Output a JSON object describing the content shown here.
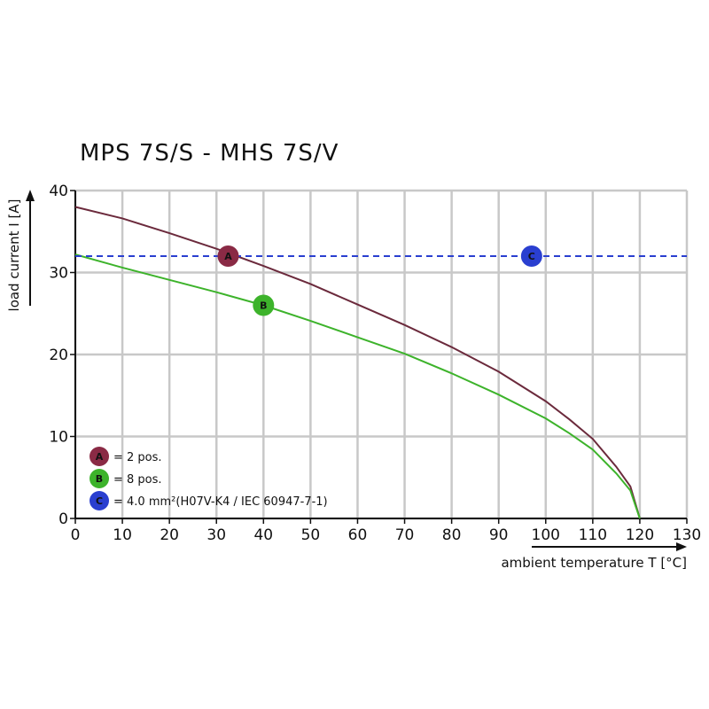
{
  "chart_data": {
    "type": "line",
    "title": "MPS 7S/S - MHS 7S/V",
    "xlabel": "ambient temperature T [°C]",
    "ylabel": "load current I [A]",
    "xlim": [
      0,
      130
    ],
    "ylim": [
      0,
      40
    ],
    "x_ticks": [
      "0",
      "10",
      "20",
      "30",
      "40",
      "50",
      "60",
      "70",
      "80",
      "90",
      "100",
      "110",
      "120",
      "130"
    ],
    "y_ticks": [
      "0",
      "10",
      "20",
      "30",
      "40"
    ],
    "grid": true,
    "series": [
      {
        "key": "A",
        "color": "#6b2a3c",
        "marker_color": "#8a2a45",
        "x": [
          0,
          10,
          20,
          30,
          40,
          50,
          60,
          70,
          80,
          90,
          100,
          105,
          110,
          115,
          118,
          120
        ],
        "y": [
          38,
          36.6,
          34.8,
          32.9,
          30.8,
          28.6,
          26.1,
          23.6,
          20.9,
          17.9,
          14.3,
          12.1,
          9.7,
          6.3,
          3.9,
          0
        ],
        "marker": {
          "x": 32.5,
          "y": 32,
          "label": "A"
        }
      },
      {
        "key": "B",
        "color": "#3db32b",
        "marker_color": "#3db32b",
        "x": [
          0,
          10,
          20,
          30,
          40,
          50,
          60,
          70,
          80,
          90,
          100,
          105,
          110,
          115,
          118,
          120
        ],
        "y": [
          32.2,
          30.6,
          29.1,
          27.6,
          26,
          24.1,
          22.1,
          20.1,
          17.7,
          15.1,
          12.2,
          10.4,
          8.4,
          5.5,
          3.4,
          0
        ],
        "marker": {
          "x": 40,
          "y": 26,
          "label": "B"
        }
      },
      {
        "key": "C",
        "color": "#2a3fd0",
        "marker_color": "#2a3fd0",
        "dashed": true,
        "x": [
          0,
          130
        ],
        "y": [
          32,
          32
        ],
        "marker": {
          "x": 97,
          "y": 32,
          "label": "C"
        }
      }
    ],
    "legend": {
      "placement": "bottom-left",
      "items": [
        {
          "key": "A",
          "text": "= 2 pos.",
          "color": "#8a2a45"
        },
        {
          "key": "B",
          "text": "= 8 pos.",
          "color": "#3db32b"
        },
        {
          "key": "C",
          "text": "= 4.0 mm²(H07V-K4 / IEC 60947-7-1)",
          "color": "#2a3fd0"
        }
      ]
    }
  }
}
